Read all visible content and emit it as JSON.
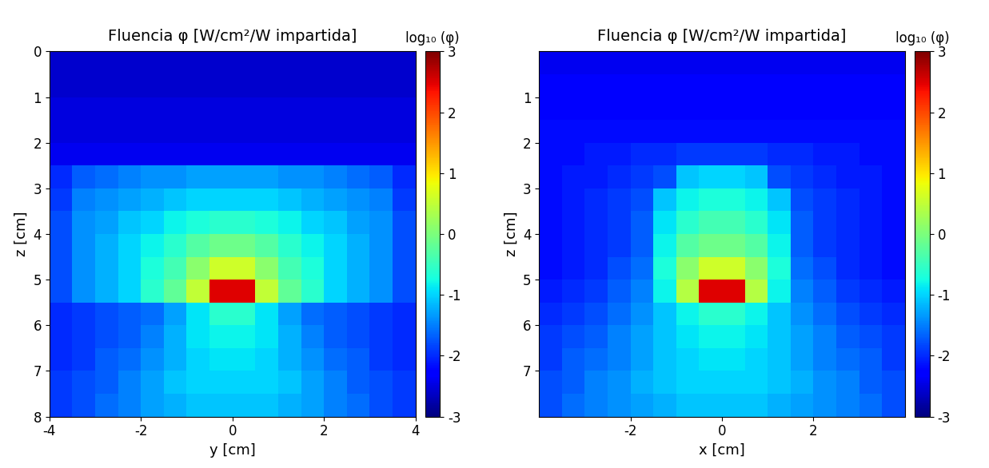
{
  "chart_data": [
    {
      "type": "heatmap",
      "title": "Fluencia φ [W/cm²/W impartida]",
      "x_label": "y [cm]",
      "y_label": "z [cm]",
      "colorbar_label": "log₁₀ (φ)",
      "colorbar_range": [
        -3,
        3
      ],
      "colorbar_ticks": [
        -3,
        -2,
        -1,
        0,
        1,
        2,
        3
      ],
      "xlim": [
        -4,
        4
      ],
      "ylim": [
        8,
        0
      ],
      "xticks": [
        -4,
        -2,
        0,
        2,
        4
      ],
      "yticks": [
        0,
        1,
        2,
        3,
        4,
        5,
        6,
        7,
        8
      ],
      "x_bins": [
        -4,
        -3.5,
        -3,
        -2.5,
        -2,
        -1.5,
        -1,
        -0.5,
        0,
        0.5,
        1,
        1.5,
        2,
        2.5,
        3,
        3.5,
        4
      ],
      "y_bins": [
        0,
        0.5,
        1,
        1.5,
        2,
        2.5,
        3,
        3.5,
        4,
        4.5,
        5,
        5.5,
        6,
        6.5,
        7,
        7.5,
        8
      ],
      "cells": [
        [
          -2.6,
          -2.6,
          -2.6,
          -2.6,
          -2.6,
          -2.6,
          -2.6,
          -2.6,
          -2.6,
          -2.6,
          -2.6,
          -2.6,
          -2.6,
          -2.6,
          -2.6,
          -2.6
        ],
        [
          -2.6,
          -2.6,
          -2.6,
          -2.6,
          -2.6,
          -2.6,
          -2.6,
          -2.6,
          -2.6,
          -2.6,
          -2.6,
          -2.6,
          -2.6,
          -2.6,
          -2.6,
          -2.6
        ],
        [
          -2.5,
          -2.5,
          -2.5,
          -2.5,
          -2.5,
          -2.5,
          -2.5,
          -2.5,
          -2.5,
          -2.5,
          -2.5,
          -2.5,
          -2.5,
          -2.5,
          -2.5,
          -2.5
        ],
        [
          -2.5,
          -2.5,
          -2.5,
          -2.5,
          -2.5,
          -2.5,
          -2.5,
          -2.5,
          -2.5,
          -2.5,
          -2.5,
          -2.5,
          -2.5,
          -2.5,
          -2.5,
          -2.5
        ],
        [
          -2.4,
          -2.4,
          -2.4,
          -2.4,
          -2.4,
          -2.4,
          -2.4,
          -2.4,
          -2.4,
          -2.4,
          -2.4,
          -2.4,
          -2.4,
          -2.4,
          -2.4,
          -2.4
        ],
        [
          -2.0,
          -1.7,
          -1.6,
          -1.5,
          -1.4,
          -1.4,
          -1.3,
          -1.3,
          -1.3,
          -1.3,
          -1.4,
          -1.4,
          -1.5,
          -1.6,
          -1.7,
          -2.0
        ],
        [
          -1.9,
          -1.5,
          -1.4,
          -1.3,
          -1.2,
          -1.1,
          -1.0,
          -1.0,
          -1.0,
          -1.0,
          -1.1,
          -1.2,
          -1.3,
          -1.4,
          -1.5,
          -1.9
        ],
        [
          -1.8,
          -1.4,
          -1.3,
          -1.1,
          -1.0,
          -0.8,
          -0.7,
          -0.6,
          -0.6,
          -0.7,
          -0.8,
          -1.0,
          -1.1,
          -1.3,
          -1.4,
          -1.8
        ],
        [
          -1.8,
          -1.4,
          -1.2,
          -1.0,
          -0.8,
          -0.6,
          -0.3,
          -0.1,
          -0.1,
          -0.3,
          -0.6,
          -0.8,
          -1.0,
          -1.2,
          -1.4,
          -1.8
        ],
        [
          -1.8,
          -1.4,
          -1.2,
          -1.0,
          -0.7,
          -0.4,
          0.1,
          0.6,
          0.6,
          0.1,
          -0.4,
          -0.7,
          -1.0,
          -1.2,
          -1.4,
          -1.8
        ],
        [
          -1.8,
          -1.4,
          -1.2,
          -1.0,
          -0.6,
          -0.2,
          0.5,
          2.5,
          2.5,
          0.5,
          -0.2,
          -0.6,
          -1.0,
          -1.2,
          -1.4,
          -1.8
        ],
        [
          -2.0,
          -1.9,
          -1.8,
          -1.7,
          -1.6,
          -1.3,
          -0.9,
          -0.6,
          -0.6,
          -0.9,
          -1.3,
          -1.6,
          -1.7,
          -1.8,
          -1.9,
          -2.0
        ],
        [
          -2.0,
          -1.9,
          -1.8,
          -1.7,
          -1.5,
          -1.2,
          -0.9,
          -0.8,
          -0.8,
          -0.9,
          -1.2,
          -1.5,
          -1.7,
          -1.8,
          -1.9,
          -2.0
        ],
        [
          -2.0,
          -1.9,
          -1.7,
          -1.6,
          -1.4,
          -1.2,
          -1.0,
          -0.9,
          -0.9,
          -1.0,
          -1.2,
          -1.4,
          -1.6,
          -1.7,
          -1.9,
          -2.0
        ],
        [
          -1.9,
          -1.8,
          -1.7,
          -1.5,
          -1.3,
          -1.1,
          -1.0,
          -1.0,
          -1.0,
          -1.0,
          -1.1,
          -1.3,
          -1.5,
          -1.7,
          -1.8,
          -1.9
        ],
        [
          -1.9,
          -1.8,
          -1.6,
          -1.5,
          -1.3,
          -1.2,
          -1.1,
          -1.1,
          -1.1,
          -1.1,
          -1.2,
          -1.3,
          -1.5,
          -1.6,
          -1.8,
          -1.9
        ]
      ]
    },
    {
      "type": "heatmap",
      "title": "Fluencia φ [W/cm²/W impartida]",
      "x_label": "x [cm]",
      "y_label": "z [cm]",
      "colorbar_label": "log₁₀ (φ)",
      "colorbar_range": [
        -3,
        3
      ],
      "colorbar_ticks": [
        -3,
        -2,
        -1,
        0,
        1,
        2,
        3
      ],
      "xlim": [
        -4,
        4
      ],
      "ylim": [
        8,
        0
      ],
      "xticks": [
        -2,
        0,
        2
      ],
      "yticks": [
        1,
        2,
        3,
        4,
        5,
        6,
        7
      ],
      "x_bins": [
        -4,
        -3.5,
        -3,
        -2.5,
        -2,
        -1.5,
        -1,
        -0.5,
        0,
        0.5,
        1,
        1.5,
        2,
        2.5,
        3,
        3.5,
        4
      ],
      "y_bins": [
        0,
        0.5,
        1,
        1.5,
        2,
        2.5,
        3,
        3.5,
        4,
        4.5,
        5,
        5.5,
        6,
        6.5,
        7,
        7.5,
        8
      ],
      "cells": [
        [
          -2.4,
          -2.4,
          -2.4,
          -2.4,
          -2.4,
          -2.4,
          -2.4,
          -2.4,
          -2.4,
          -2.4,
          -2.4,
          -2.4,
          -2.4,
          -2.4,
          -2.4,
          -2.4
        ],
        [
          -2.3,
          -2.3,
          -2.3,
          -2.3,
          -2.3,
          -2.3,
          -2.3,
          -2.3,
          -2.3,
          -2.3,
          -2.3,
          -2.3,
          -2.3,
          -2.3,
          -2.3,
          -2.3
        ],
        [
          -2.3,
          -2.3,
          -2.3,
          -2.3,
          -2.3,
          -2.3,
          -2.3,
          -2.3,
          -2.3,
          -2.3,
          -2.3,
          -2.3,
          -2.3,
          -2.3,
          -2.3,
          -2.3
        ],
        [
          -2.2,
          -2.2,
          -2.2,
          -2.2,
          -2.2,
          -2.2,
          -2.2,
          -2.2,
          -2.2,
          -2.2,
          -2.2,
          -2.2,
          -2.2,
          -2.2,
          -2.2,
          -2.2
        ],
        [
          -2.2,
          -2.2,
          -2.1,
          -2.1,
          -2.0,
          -2.0,
          -1.9,
          -1.9,
          -1.9,
          -1.9,
          -2.0,
          -2.0,
          -2.1,
          -2.1,
          -2.2,
          -2.2
        ],
        [
          -2.2,
          -2.1,
          -2.1,
          -2.0,
          -1.9,
          -1.8,
          -1.1,
          -1.0,
          -1.0,
          -1.1,
          -1.8,
          -1.9,
          -2.0,
          -2.1,
          -2.1,
          -2.2
        ],
        [
          -2.2,
          -2.1,
          -2.0,
          -1.9,
          -1.8,
          -1.1,
          -0.8,
          -0.7,
          -0.7,
          -0.8,
          -1.1,
          -1.8,
          -1.9,
          -2.0,
          -2.1,
          -2.2
        ],
        [
          -2.2,
          -2.1,
          -2.0,
          -1.9,
          -1.7,
          -0.9,
          -0.6,
          -0.4,
          -0.4,
          -0.6,
          -0.9,
          -1.7,
          -1.9,
          -2.0,
          -2.1,
          -2.2
        ],
        [
          -2.2,
          -2.1,
          -2.0,
          -1.9,
          -1.7,
          -0.8,
          -0.3,
          -0.1,
          -0.1,
          -0.3,
          -0.8,
          -1.7,
          -1.9,
          -2.0,
          -2.1,
          -2.2
        ],
        [
          -2.2,
          -2.1,
          -2.0,
          -1.8,
          -1.6,
          -0.7,
          0.1,
          0.6,
          0.6,
          0.1,
          -0.7,
          -1.6,
          -1.8,
          -2.0,
          -2.1,
          -2.2
        ],
        [
          -2.1,
          -2.0,
          -1.9,
          -1.7,
          -1.5,
          -0.8,
          0.4,
          2.5,
          2.5,
          0.4,
          -0.8,
          -1.5,
          -1.7,
          -1.9,
          -2.0,
          -2.1
        ],
        [
          -2.0,
          -1.9,
          -1.8,
          -1.6,
          -1.4,
          -1.1,
          -0.8,
          -0.6,
          -0.6,
          -0.8,
          -1.1,
          -1.4,
          -1.6,
          -1.8,
          -1.9,
          -2.0
        ],
        [
          -1.9,
          -1.8,
          -1.7,
          -1.5,
          -1.3,
          -1.1,
          -0.9,
          -0.8,
          -0.8,
          -0.9,
          -1.1,
          -1.3,
          -1.5,
          -1.7,
          -1.8,
          -1.9
        ],
        [
          -1.9,
          -1.7,
          -1.6,
          -1.5,
          -1.3,
          -1.1,
          -1.0,
          -0.9,
          -0.9,
          -1.0,
          -1.1,
          -1.3,
          -1.5,
          -1.6,
          -1.7,
          -1.9
        ],
        [
          -1.8,
          -1.7,
          -1.5,
          -1.4,
          -1.2,
          -1.1,
          -1.0,
          -1.0,
          -1.0,
          -1.0,
          -1.1,
          -1.2,
          -1.4,
          -1.5,
          -1.7,
          -1.8
        ],
        [
          -1.8,
          -1.6,
          -1.5,
          -1.4,
          -1.3,
          -1.2,
          -1.1,
          -1.1,
          -1.1,
          -1.1,
          -1.2,
          -1.3,
          -1.4,
          -1.5,
          -1.6,
          -1.8
        ]
      ]
    }
  ]
}
